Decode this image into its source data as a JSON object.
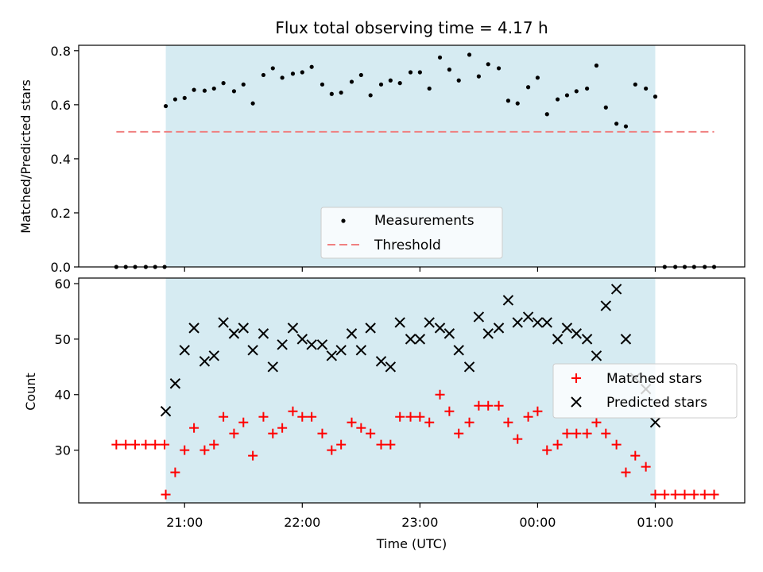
{
  "chart_data": {
    "title": "Flux total observing time = 4.17 h",
    "xlabel": "Time (UTC)",
    "x_ticks": [
      "21:00",
      "22:00",
      "23:00",
      "00:00",
      "01:00"
    ],
    "x_tick_hours": [
      21,
      22,
      23,
      24,
      25
    ],
    "xlim": [
      20.1,
      25.76
    ],
    "shaded_region": {
      "start": 20.84,
      "end": 25.0,
      "color": "#add8e6"
    },
    "panels": [
      {
        "type": "scatter",
        "ylabel": "Matched/Predicted stars",
        "ylim": [
          0,
          0.82
        ],
        "y_ticks": [
          0.0,
          0.2,
          0.4,
          0.6,
          0.8
        ],
        "legend": {
          "placement": "lower center",
          "entries": [
            "Measurements",
            "Threshold"
          ]
        },
        "series": [
          {
            "name": "Measurements",
            "marker": "dot",
            "color": "#000000",
            "x": [
              20.42,
              20.5,
              20.58,
              20.67,
              20.75,
              20.83,
              20.84,
              20.92,
              21.0,
              21.08,
              21.17,
              21.25,
              21.33,
              21.42,
              21.5,
              21.58,
              21.67,
              21.75,
              21.83,
              21.92,
              22.0,
              22.08,
              22.17,
              22.25,
              22.33,
              22.42,
              22.5,
              22.58,
              22.67,
              22.75,
              22.83,
              22.92,
              23.0,
              23.08,
              23.17,
              23.25,
              23.33,
              23.42,
              23.5,
              23.58,
              23.67,
              23.75,
              23.83,
              23.92,
              24.0,
              24.08,
              24.17,
              24.25,
              24.33,
              24.42,
              24.5,
              24.58,
              24.67,
              24.75,
              24.83,
              24.92,
              25.0,
              25.08,
              25.17,
              25.25,
              25.33,
              25.42,
              25.5
            ],
            "y": [
              0,
              0,
              0,
              0,
              0,
              0,
              0.595,
              0.62,
              0.625,
              0.655,
              0.652,
              0.66,
              0.68,
              0.65,
              0.675,
              0.605,
              0.71,
              0.735,
              0.7,
              0.715,
              0.72,
              0.74,
              0.675,
              0.64,
              0.645,
              0.685,
              0.71,
              0.635,
              0.675,
              0.69,
              0.68,
              0.72,
              0.72,
              0.66,
              0.775,
              0.73,
              0.69,
              0.785,
              0.705,
              0.75,
              0.735,
              0.615,
              0.605,
              0.665,
              0.7,
              0.565,
              0.62,
              0.635,
              0.65,
              0.66,
              0.745,
              0.59,
              0.53,
              0.52,
              0.675,
              0.66,
              0.63,
              0,
              0,
              0,
              0,
              0,
              0
            ]
          },
          {
            "name": "Threshold",
            "type": "line",
            "style": "dashed",
            "color": "#f08080",
            "x": [
              20.42,
              25.5
            ],
            "y": [
              0.5,
              0.5
            ]
          }
        ]
      },
      {
        "type": "scatter",
        "ylabel": "Count",
        "ylim": [
          20.5,
          61
        ],
        "y_ticks": [
          30,
          40,
          50,
          60
        ],
        "legend": {
          "placement": "center right",
          "entries": [
            "Matched stars",
            "Predicted stars"
          ]
        },
        "series": [
          {
            "name": "Matched stars",
            "marker": "plus",
            "color": "#ff0000",
            "x": [
              20.42,
              20.5,
              20.58,
              20.67,
              20.75,
              20.83,
              20.84,
              20.92,
              21.0,
              21.08,
              21.17,
              21.25,
              21.33,
              21.42,
              21.5,
              21.58,
              21.67,
              21.75,
              21.83,
              21.92,
              22.0,
              22.08,
              22.17,
              22.25,
              22.33,
              22.42,
              22.5,
              22.58,
              22.67,
              22.75,
              22.83,
              22.92,
              23.0,
              23.08,
              23.17,
              23.25,
              23.33,
              23.42,
              23.5,
              23.58,
              23.67,
              23.75,
              23.83,
              23.92,
              24.0,
              24.08,
              24.17,
              24.25,
              24.33,
              24.42,
              24.5,
              24.58,
              24.67,
              24.75,
              24.83,
              24.92,
              25.0,
              25.08,
              25.17,
              25.25,
              25.33,
              25.42,
              25.5
            ],
            "y": [
              31,
              31,
              31,
              31,
              31,
              31,
              22,
              26,
              30,
              34,
              30,
              31,
              36,
              33,
              35,
              29,
              36,
              33,
              34,
              37,
              36,
              36,
              33,
              30,
              31,
              35,
              34,
              33,
              31,
              31,
              36,
              36,
              36,
              35,
              40,
              37,
              33,
              35,
              38,
              38,
              38,
              35,
              32,
              36,
              37,
              30,
              31,
              33,
              33,
              33,
              35,
              33,
              31,
              26,
              29,
              27,
              22,
              22,
              22,
              22,
              22,
              22,
              22
            ]
          },
          {
            "name": "Predicted stars",
            "marker": "x",
            "color": "#000000",
            "x": [
              20.84,
              20.92,
              21.0,
              21.08,
              21.17,
              21.25,
              21.33,
              21.42,
              21.5,
              21.58,
              21.67,
              21.75,
              21.83,
              21.92,
              22.0,
              22.08,
              22.17,
              22.25,
              22.33,
              22.42,
              22.5,
              22.58,
              22.67,
              22.75,
              22.83,
              22.92,
              23.0,
              23.08,
              23.17,
              23.25,
              23.33,
              23.42,
              23.5,
              23.58,
              23.67,
              23.75,
              23.83,
              23.92,
              24.0,
              24.08,
              24.17,
              24.25,
              24.33,
              24.42,
              24.5,
              24.58,
              24.67,
              24.75,
              24.83,
              24.92,
              25.0
            ],
            "y": [
              37,
              42,
              48,
              52,
              46,
              47,
              53,
              51,
              52,
              48,
              51,
              45,
              49,
              52,
              50,
              49,
              49,
              47,
              48,
              51,
              48,
              52,
              46,
              45,
              53,
              50,
              50,
              53,
              52,
              51,
              48,
              45,
              54,
              51,
              52,
              57,
              53,
              54,
              53,
              53,
              50,
              52,
              51,
              50,
              47,
              56,
              59,
              50,
              43,
              41,
              35
            ]
          }
        ]
      }
    ]
  }
}
